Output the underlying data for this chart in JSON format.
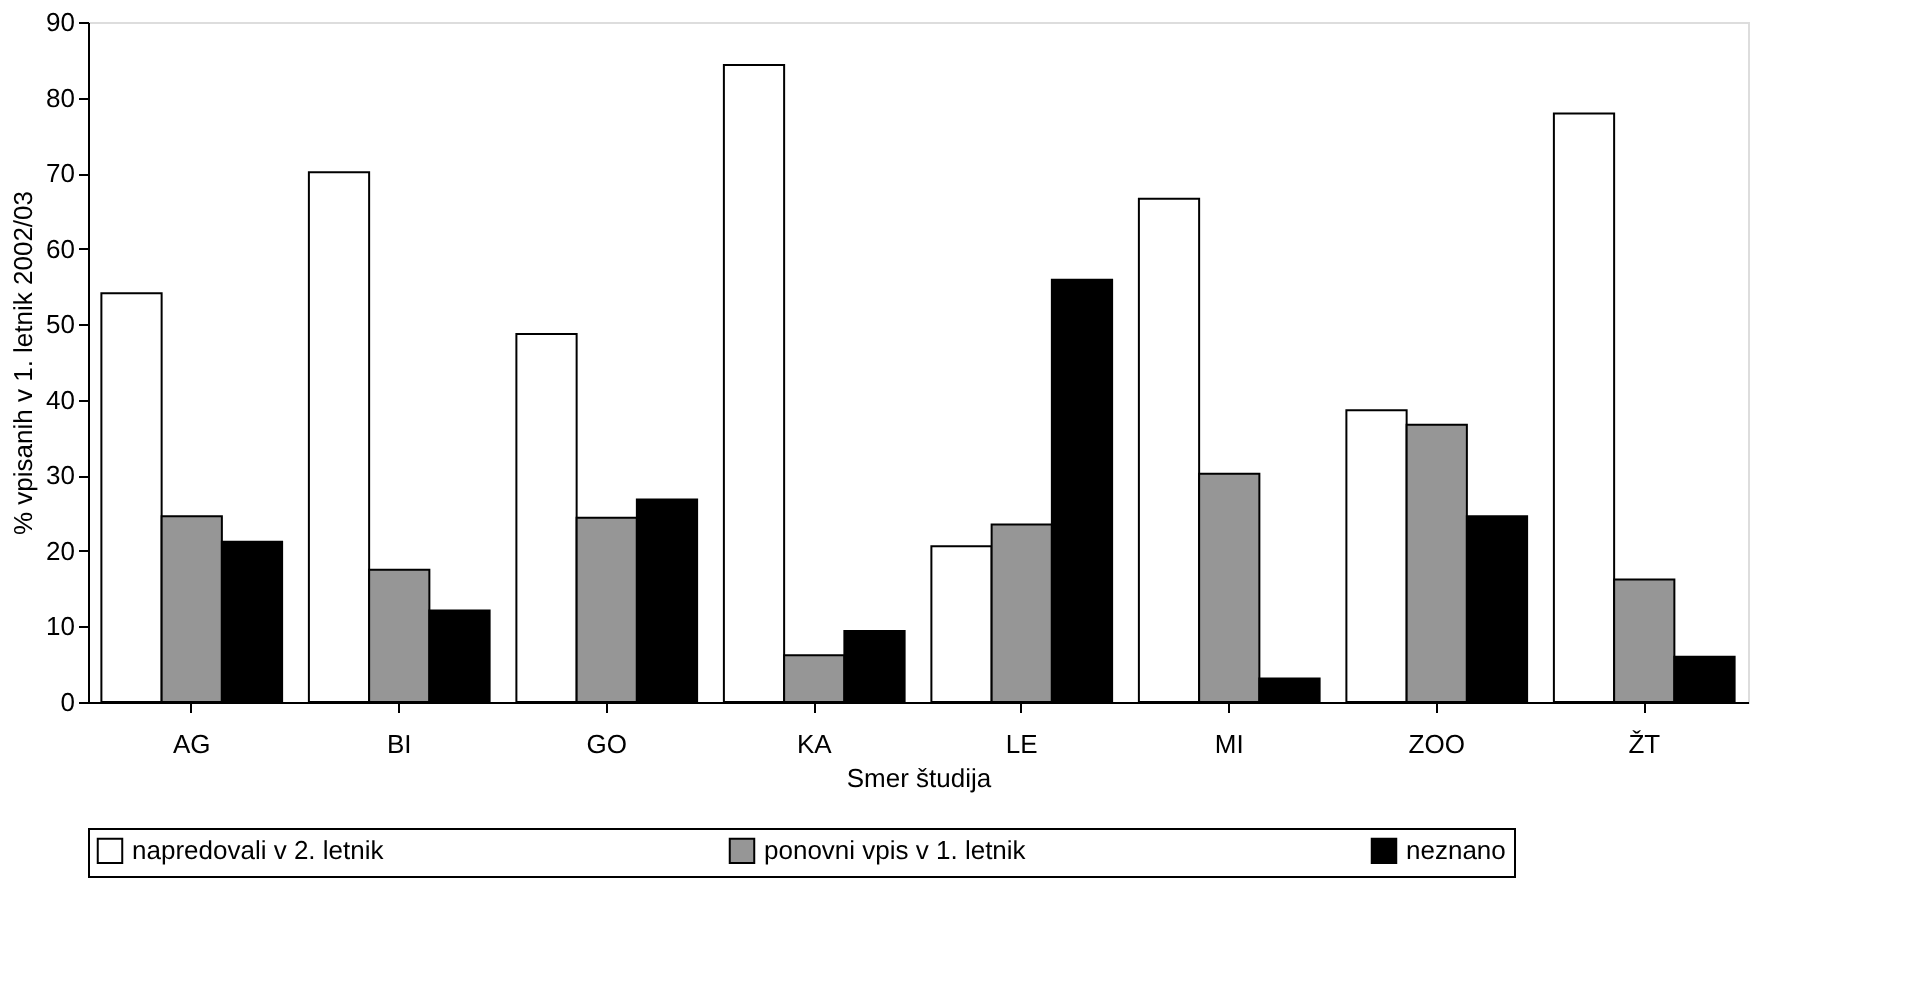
{
  "chart_data": {
    "type": "bar",
    "xlabel": "Smer študija",
    "ylabel": "% vpisanih v 1. letnik 2002/03",
    "categories": [
      "AG",
      "BI",
      "GO",
      "KA",
      "LE",
      "MI",
      "ZOO",
      "ŽT"
    ],
    "series": [
      {
        "name": "napredovali v 2. letnik",
        "color": "#ffffff",
        "values": [
          54.1,
          70.1,
          48.7,
          84.3,
          20.6,
          66.6,
          38.6,
          77.9
        ]
      },
      {
        "name": "ponovni vpis v 1. letnik",
        "color": "#969696",
        "values": [
          24.6,
          17.5,
          24.4,
          6.2,
          23.5,
          30.2,
          36.7,
          16.2
        ]
      },
      {
        "name": "neznano",
        "color": "#000000",
        "values": [
          21.2,
          12.1,
          26.8,
          9.4,
          55.9,
          3.1,
          24.6,
          6.0
        ]
      }
    ],
    "ylim": [
      0,
      90
    ],
    "yticks": [
      0,
      10,
      20,
      30,
      40,
      50,
      60,
      70,
      80,
      90
    ],
    "grid": false,
    "legend": "bottom"
  }
}
